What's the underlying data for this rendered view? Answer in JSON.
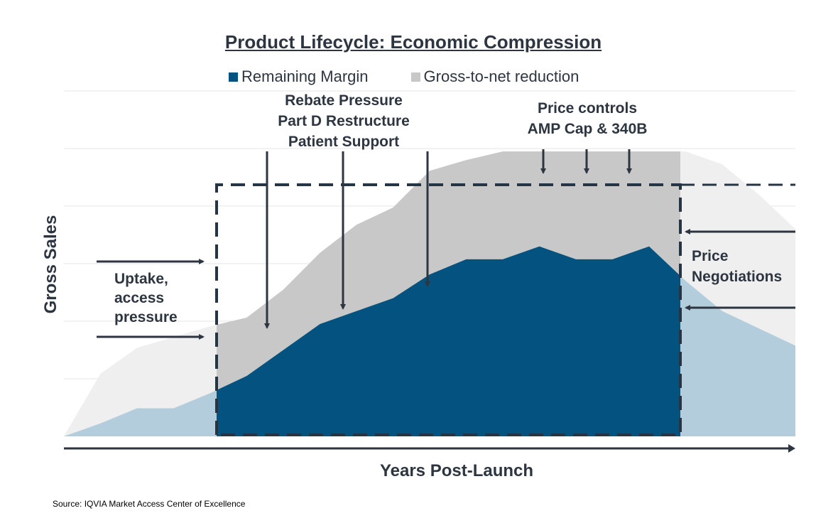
{
  "chart_data": {
    "type": "area",
    "title": "Product Lifecycle: Economic Compression",
    "xlabel": "Years Post-Launch",
    "ylabel": "Gross Sales",
    "axis_ticks": "none",
    "grid": true,
    "legend_position": "top",
    "x": [
      0,
      1,
      2,
      3,
      4,
      5,
      6,
      7,
      8,
      9,
      10,
      11,
      12,
      13,
      14,
      15,
      16,
      17,
      18,
      19,
      20
    ],
    "series": [
      {
        "name": "Remaining Margin",
        "color": "#04527f",
        "values": [
          0,
          6,
          13,
          13,
          20,
          28,
          40,
          52,
          58,
          64,
          75,
          82,
          82,
          88,
          82,
          82,
          88,
          72,
          58,
          50,
          42
        ]
      },
      {
        "name": "Gross-to-net reduction",
        "color": "#c8c8c8",
        "values": [
          0,
          29,
          41,
          46,
          51,
          55,
          68,
          85,
          98,
          106,
          123,
          128,
          132,
          132,
          132,
          132,
          132,
          132,
          126,
          112,
          96
        ]
      }
    ],
    "focus_window": {
      "x_start": 4.1,
      "x_end": 16.8,
      "line_style": "dashed",
      "dark_color": "#263545"
    },
    "annotations": {
      "left": "Uptake,\naccess\npressure",
      "rebate": "Rebate Pressure\nPart D Restructure\nPatient Support",
      "price_controls": "Price controls\nAMP Cap & 340B",
      "right": "Price\nNegotiations"
    },
    "colors": {
      "margin_faded": "#b4cddc",
      "reduction_faded": "#efefef",
      "peak_faded": "#e6e6e6",
      "annotation_dark": "#2d3640",
      "grid": "#e6e6e6"
    }
  },
  "source": "Source: IQVIA Market Access Center of Excellence"
}
